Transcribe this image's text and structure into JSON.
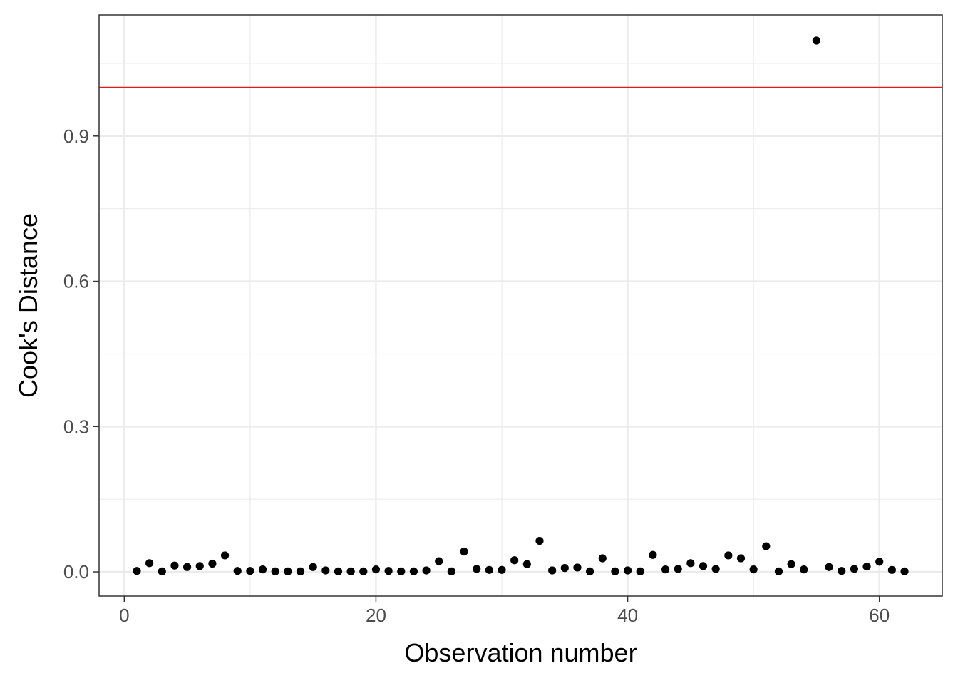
{
  "chart_data": {
    "type": "scatter",
    "title": "",
    "xlabel": "Observation number",
    "ylabel": "Cook's Distance",
    "xlim": [
      -2,
      65
    ],
    "ylim": [
      -0.05,
      1.15
    ],
    "x_ticks": [
      0,
      20,
      40,
      60
    ],
    "x_tick_labels": [
      "0",
      "20",
      "40",
      "60"
    ],
    "y_ticks": [
      0.0,
      0.3,
      0.6,
      0.9
    ],
    "y_tick_labels": [
      "0.0",
      "0.3",
      "0.6",
      "0.9"
    ],
    "grid": true,
    "reference_line": {
      "y": 1.0,
      "color": "#e31a1c"
    },
    "point_color": "#000000",
    "x": [
      1,
      2,
      3,
      4,
      5,
      6,
      7,
      8,
      9,
      10,
      11,
      12,
      13,
      14,
      15,
      16,
      17,
      18,
      19,
      20,
      21,
      22,
      23,
      24,
      25,
      26,
      27,
      28,
      29,
      30,
      31,
      32,
      33,
      34,
      35,
      36,
      37,
      38,
      39,
      40,
      41,
      42,
      43,
      44,
      45,
      46,
      47,
      48,
      49,
      50,
      51,
      52,
      53,
      54,
      55,
      56,
      57,
      58,
      59,
      60,
      61,
      62
    ],
    "y": [
      0.002,
      0.018,
      0.001,
      0.013,
      0.01,
      0.012,
      0.017,
      0.034,
      0.002,
      0.002,
      0.005,
      0.001,
      0.001,
      0.001,
      0.01,
      0.003,
      0.001,
      0.001,
      0.001,
      0.005,
      0.002,
      0.001,
      0.001,
      0.003,
      0.022,
      0.001,
      0.042,
      0.006,
      0.004,
      0.004,
      0.024,
      0.016,
      0.064,
      0.003,
      0.008,
      0.009,
      0.001,
      0.028,
      0.001,
      0.003,
      0.001,
      0.035,
      0.005,
      0.006,
      0.018,
      0.012,
      0.006,
      0.034,
      0.028,
      0.005,
      0.053,
      0.001,
      0.016,
      0.005,
      1.097,
      0.01,
      0.002,
      0.006,
      0.011,
      0.021,
      0.004,
      0.001
    ]
  }
}
